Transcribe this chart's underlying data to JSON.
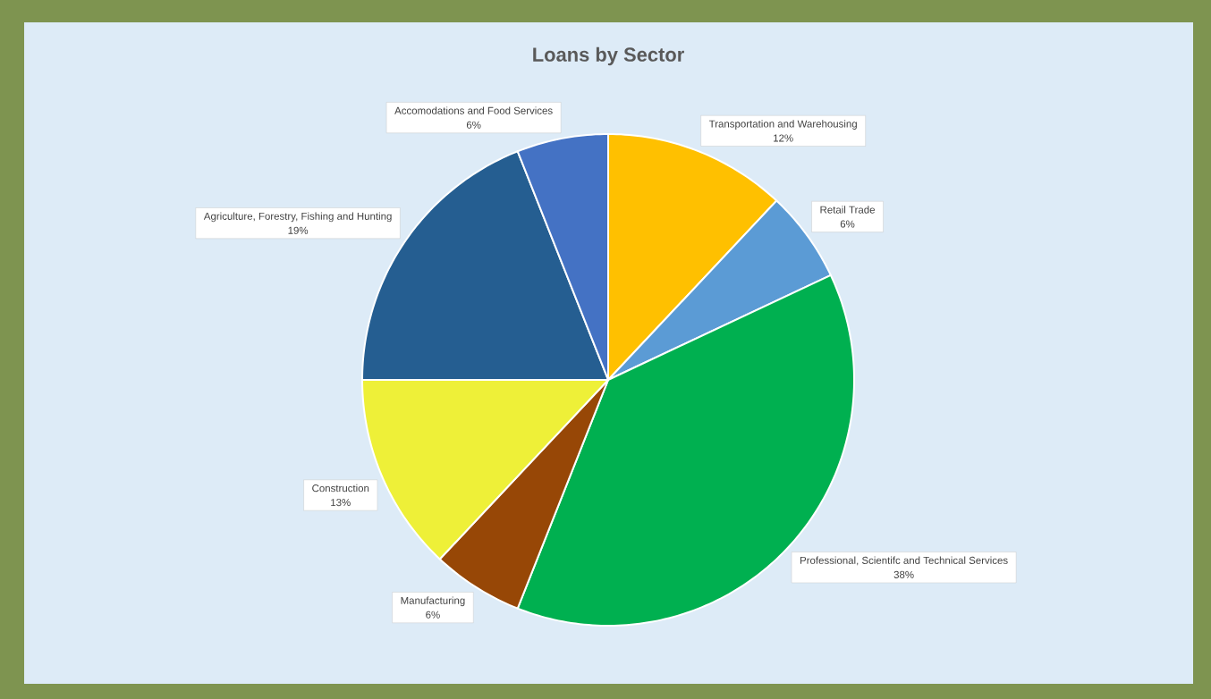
{
  "chart_data": {
    "type": "pie",
    "title": "Loans by Sector",
    "categories": [
      "Transportation and Warehousing",
      "Retail Trade",
      "Professional, Scientifc and Technical Services",
      "Manufacturing",
      "Construction",
      "Agriculture, Forestry, Fishing and Hunting",
      "Accomodations and Food Services"
    ],
    "values": [
      12,
      6,
      38,
      6,
      13,
      19,
      6
    ],
    "value_labels": [
      "12%",
      "6%",
      "38%",
      "6%",
      "13%",
      "19%",
      "6%"
    ],
    "colors": [
      "#ffc000",
      "#5b9bd5",
      "#00b050",
      "#974706",
      "#eef038",
      "#255e91",
      "#4472c4"
    ]
  }
}
